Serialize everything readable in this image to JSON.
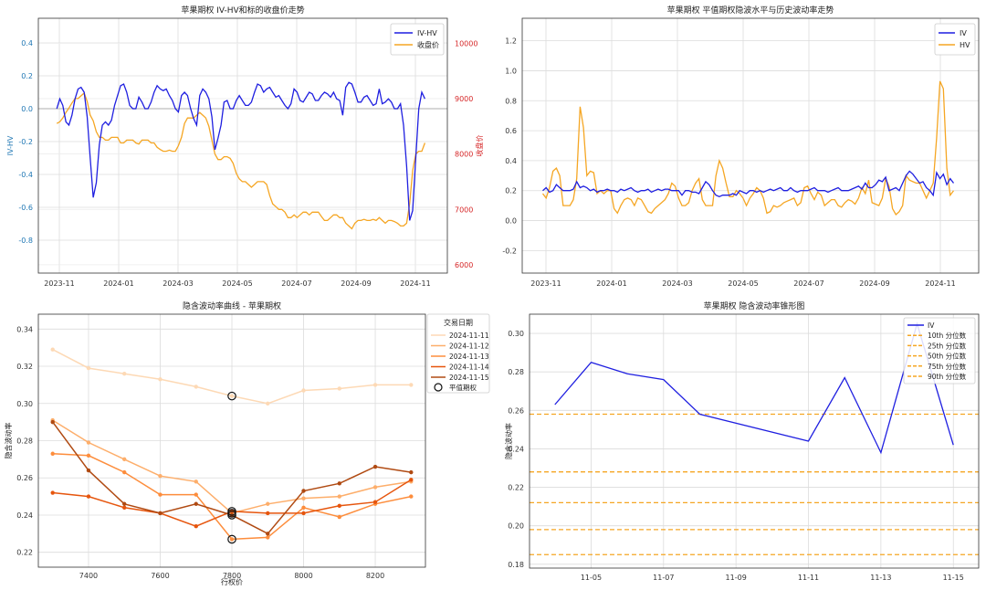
{
  "colors": {
    "blue": "#1f1fe0",
    "orange": "#f5a623",
    "left_axis": "#1f77b4",
    "right_axis": "#d62728",
    "grid": "#dcdcdc",
    "hline": "#c8c8c8",
    "percentile": "#f5a623",
    "oranges": [
      "#fdd9b5",
      "#fdae6b",
      "#fd8d3c",
      "#e6550d",
      "#b04a12"
    ]
  },
  "chart_data": [
    {
      "id": "c1",
      "type": "line",
      "title": "苹果期权 IV-HV和标的收盘价走势",
      "xlabel": "",
      "ylabel": "IV-HV",
      "ylabel_right": "收盘价",
      "x_ticks": [
        "2023-11",
        "2024-01",
        "2024-03",
        "2024-05",
        "2024-07",
        "2024-09",
        "2024-11"
      ],
      "ylim": [
        -1.0,
        0.55
      ],
      "y_ticks": [
        0.4,
        0.2,
        0.0,
        -0.2,
        -0.4,
        -0.6,
        -0.8
      ],
      "y_tick_labels": [
        "0.4",
        "0.2",
        "0.0",
        "-0.2",
        "-0.4",
        "-0.6",
        "-0.8"
      ],
      "ylim_right": [
        5850,
        10450
      ],
      "y_right_ticks": [
        10000,
        9000,
        8000,
        7000,
        6000
      ],
      "y_right_tick_labels": [
        "10000",
        "9000",
        "8000",
        "7000",
        "6000"
      ],
      "hlines": [
        0.0
      ],
      "legend": [
        "IV-HV",
        "收盘价"
      ],
      "series": [
        {
          "name": "IV-HV",
          "axis": "left",
          "values": [
            0.0,
            0.06,
            0.02,
            -0.08,
            -0.1,
            -0.04,
            0.06,
            0.12,
            0.13,
            0.1,
            -0.05,
            -0.3,
            -0.54,
            -0.45,
            -0.22,
            -0.1,
            -0.08,
            -0.1,
            -0.07,
            0.02,
            0.08,
            0.14,
            0.15,
            0.1,
            0.02,
            0.0,
            0.0,
            0.07,
            0.04,
            0.0,
            0.0,
            0.04,
            0.1,
            0.14,
            0.12,
            0.11,
            0.12,
            0.08,
            0.05,
            0.0,
            -0.02,
            0.08,
            0.1,
            0.08,
            0.0,
            -0.06,
            -0.1,
            0.08,
            0.12,
            0.1,
            0.06,
            -0.05,
            -0.25,
            -0.18,
            -0.1,
            0.04,
            0.05,
            0.0,
            0.0,
            0.05,
            0.08,
            0.05,
            0.02,
            0.02,
            0.04,
            0.1,
            0.15,
            0.14,
            0.1,
            0.12,
            0.13,
            0.1,
            0.07,
            0.08,
            0.05,
            0.02,
            0.0,
            0.03,
            0.12,
            0.1,
            0.05,
            0.04,
            0.07,
            0.1,
            0.09,
            0.05,
            0.05,
            0.08,
            0.1,
            0.09,
            0.07,
            0.1,
            0.06,
            0.05,
            -0.04,
            0.13,
            0.16,
            0.15,
            0.1,
            0.04,
            0.04,
            0.07,
            0.08,
            0.05,
            0.02,
            0.03,
            0.12,
            0.03,
            0.04,
            0.06,
            0.04,
            0.0,
            0.0,
            0.03,
            -0.1,
            -0.35,
            -0.68,
            -0.62,
            -0.3,
            0.0,
            0.1,
            0.06
          ]
        },
        {
          "name": "收盘价",
          "axis": "right",
          "values": [
            8550,
            8580,
            8650,
            8750,
            8830,
            8920,
            9000,
            9000,
            9050,
            9100,
            8950,
            8700,
            8600,
            8400,
            8300,
            8300,
            8250,
            8250,
            8300,
            8300,
            8300,
            8200,
            8200,
            8250,
            8250,
            8250,
            8200,
            8180,
            8250,
            8250,
            8250,
            8200,
            8200,
            8120,
            8080,
            8050,
            8050,
            8070,
            8050,
            8050,
            8150,
            8300,
            8550,
            8650,
            8650,
            8650,
            8700,
            8750,
            8700,
            8650,
            8500,
            8250,
            8000,
            7900,
            7900,
            7950,
            7950,
            7920,
            7830,
            7650,
            7550,
            7500,
            7500,
            7450,
            7400,
            7450,
            7500,
            7500,
            7500,
            7450,
            7250,
            7100,
            7050,
            7000,
            7000,
            6950,
            6850,
            6850,
            6900,
            6850,
            6900,
            6950,
            6950,
            6900,
            6950,
            6950,
            6950,
            6870,
            6800,
            6800,
            6850,
            6900,
            6900,
            6850,
            6850,
            6750,
            6700,
            6650,
            6750,
            6800,
            6800,
            6820,
            6800,
            6800,
            6820,
            6800,
            6850,
            6800,
            6750,
            6800,
            6800,
            6780,
            6750,
            6700,
            6700,
            6750,
            7100,
            7700,
            8000,
            8050,
            8050,
            8200
          ]
        }
      ]
    },
    {
      "id": "c2",
      "type": "line",
      "title": "苹果期权 平值期权隐波水平与历史波动率走势",
      "xlabel": "",
      "ylabel": "",
      "x_ticks": [
        "2023-11",
        "2024-01",
        "2024-03",
        "2024-05",
        "2024-07",
        "2024-09",
        "2024-11"
      ],
      "ylim": [
        -0.35,
        1.35
      ],
      "y_ticks": [
        1.2,
        1.0,
        0.8,
        0.6,
        0.4,
        0.2,
        0.0,
        -0.2
      ],
      "y_tick_labels": [
        "1.2",
        "1.0",
        "0.8",
        "0.6",
        "0.4",
        "0.2",
        "0.0",
        "-0.2"
      ],
      "legend": [
        "IV",
        "HV"
      ],
      "series": [
        {
          "name": "IV",
          "values": [
            0.2,
            0.22,
            0.19,
            0.2,
            0.24,
            0.22,
            0.2,
            0.2,
            0.2,
            0.21,
            0.26,
            0.22,
            0.23,
            0.22,
            0.2,
            0.21,
            0.19,
            0.2,
            0.2,
            0.21,
            0.2,
            0.2,
            0.19,
            0.21,
            0.2,
            0.21,
            0.22,
            0.2,
            0.19,
            0.2,
            0.2,
            0.21,
            0.19,
            0.2,
            0.21,
            0.2,
            0.21,
            0.21,
            0.2,
            0.2,
            0.2,
            0.17,
            0.2,
            0.2,
            0.19,
            0.19,
            0.18,
            0.22,
            0.26,
            0.24,
            0.2,
            0.17,
            0.16,
            0.17,
            0.17,
            0.17,
            0.18,
            0.17,
            0.2,
            0.19,
            0.18,
            0.2,
            0.2,
            0.19,
            0.2,
            0.19,
            0.2,
            0.21,
            0.2,
            0.21,
            0.22,
            0.2,
            0.2,
            0.22,
            0.2,
            0.19,
            0.2,
            0.2,
            0.2,
            0.21,
            0.22,
            0.2,
            0.2,
            0.2,
            0.19,
            0.2,
            0.21,
            0.22,
            0.2,
            0.2,
            0.2,
            0.21,
            0.22,
            0.23,
            0.21,
            0.25,
            0.22,
            0.22,
            0.24,
            0.27,
            0.26,
            0.29,
            0.2,
            0.21,
            0.22,
            0.2,
            0.25,
            0.3,
            0.33,
            0.31,
            0.28,
            0.25,
            0.26,
            0.22,
            0.2,
            0.17,
            0.32,
            0.28,
            0.31,
            0.24,
            0.28,
            0.25
          ]
        },
        {
          "name": "HV",
          "values": [
            0.18,
            0.15,
            0.22,
            0.33,
            0.35,
            0.3,
            0.1,
            0.1,
            0.1,
            0.14,
            0.28,
            0.76,
            0.62,
            0.3,
            0.33,
            0.32,
            0.18,
            0.2,
            0.18,
            0.2,
            0.2,
            0.08,
            0.05,
            0.1,
            0.14,
            0.15,
            0.14,
            0.1,
            0.15,
            0.14,
            0.1,
            0.06,
            0.05,
            0.08,
            0.1,
            0.12,
            0.14,
            0.18,
            0.25,
            0.23,
            0.15,
            0.1,
            0.1,
            0.12,
            0.2,
            0.25,
            0.28,
            0.14,
            0.1,
            0.1,
            0.1,
            0.3,
            0.4,
            0.35,
            0.25,
            0.16,
            0.16,
            0.2,
            0.18,
            0.15,
            0.1,
            0.15,
            0.18,
            0.22,
            0.2,
            0.15,
            0.05,
            0.06,
            0.1,
            0.09,
            0.1,
            0.12,
            0.13,
            0.14,
            0.15,
            0.1,
            0.12,
            0.22,
            0.23,
            0.18,
            0.14,
            0.19,
            0.17,
            0.1,
            0.12,
            0.14,
            0.14,
            0.1,
            0.09,
            0.12,
            0.14,
            0.13,
            0.11,
            0.15,
            0.22,
            0.18,
            0.27,
            0.12,
            0.11,
            0.1,
            0.15,
            0.28,
            0.23,
            0.08,
            0.04,
            0.06,
            0.1,
            0.3,
            0.27,
            0.26,
            0.25,
            0.25,
            0.2,
            0.15,
            0.2,
            0.25,
            0.55,
            0.93,
            0.88,
            0.35,
            0.17,
            0.2
          ]
        }
      ]
    },
    {
      "id": "c3",
      "type": "line",
      "title": "隐含波动率曲线 - 苹果期权",
      "xlabel": "行权价",
      "ylabel": "隐含波动率",
      "xlim": [
        7260,
        8340
      ],
      "x_ticks": [
        7400,
        7600,
        7800,
        8000,
        8200
      ],
      "x_tick_labels": [
        "7400",
        "7600",
        "7800",
        "8000",
        "8200"
      ],
      "ylim": [
        0.212,
        0.348
      ],
      "y_ticks": [
        0.34,
        0.32,
        0.3,
        0.28,
        0.26,
        0.24,
        0.22
      ],
      "y_tick_labels": [
        "0.34",
        "0.32",
        "0.30",
        "0.28",
        "0.26",
        "0.24",
        "0.22"
      ],
      "legend_title": "交易日期",
      "legend": [
        "2024-11-11",
        "2024-11-12",
        "2024-11-13",
        "2024-11-14",
        "2024-11-15",
        "平值期权"
      ],
      "x": [
        7300,
        7400,
        7500,
        7600,
        7700,
        7800,
        7900,
        8000,
        8100,
        8200,
        8300
      ],
      "atm_strike": 7800,
      "series": [
        {
          "name": "2024-11-11",
          "values": [
            0.329,
            0.319,
            0.316,
            0.313,
            0.309,
            0.304,
            0.3,
            0.307,
            0.308,
            0.31,
            0.31
          ]
        },
        {
          "name": "2024-11-12",
          "values": [
            0.291,
            0.279,
            0.27,
            0.261,
            0.258,
            0.241,
            0.246,
            0.249,
            0.25,
            0.255,
            0.258
          ]
        },
        {
          "name": "2024-11-13",
          "values": [
            0.273,
            0.272,
            0.263,
            0.251,
            0.251,
            0.227,
            0.228,
            0.244,
            0.239,
            0.246,
            0.25
          ]
        },
        {
          "name": "2024-11-14",
          "values": [
            0.252,
            0.25,
            0.244,
            0.241,
            0.234,
            0.242,
            0.241,
            0.241,
            0.245,
            0.247,
            0.259
          ]
        },
        {
          "name": "2024-11-15",
          "values": [
            0.29,
            0.264,
            0.246,
            0.241,
            0.246,
            0.24,
            0.23,
            0.253,
            0.257,
            0.266,
            0.263
          ]
        }
      ],
      "atm_points": [
        0.304,
        0.241,
        0.227,
        0.242,
        0.24
      ]
    },
    {
      "id": "c4",
      "type": "line",
      "title": "苹果期权 隐含波动率锥形图",
      "xlabel": "",
      "ylabel": "隐含波动率",
      "x_ticks": [
        "11-05",
        "11-07",
        "11-09",
        "11-11",
        "11-13",
        "11-15"
      ],
      "ylim": [
        0.178,
        0.31
      ],
      "y_ticks": [
        0.3,
        0.28,
        0.26,
        0.24,
        0.22,
        0.2,
        0.18
      ],
      "y_tick_labels": [
        "0.30",
        "0.28",
        "0.26",
        "0.24",
        "0.22",
        "0.20",
        "0.18"
      ],
      "legend": [
        "IV",
        "10th 分位数",
        "25th 分位数",
        "50th 分位数",
        "75th 分位数",
        "90th 分位数"
      ],
      "series": [
        {
          "name": "IV",
          "dates": [
            "11-04",
            "11-05",
            "11-06",
            "11-07",
            "11-08",
            "11-11",
            "11-12",
            "11-13",
            "11-14",
            "11-15"
          ],
          "values": [
            0.263,
            0.285,
            0.279,
            0.276,
            0.258,
            0.244,
            0.277,
            0.238,
            0.305,
            0.242
          ]
        }
      ],
      "percentiles": [
        {
          "name": "10th 分位数",
          "value": 0.185
        },
        {
          "name": "25th 分位数",
          "value": 0.198
        },
        {
          "name": "50th 分位数",
          "value": 0.212
        },
        {
          "name": "75th 分位数",
          "value": 0.228
        },
        {
          "name": "90th 分位数",
          "value": 0.258
        }
      ]
    }
  ]
}
